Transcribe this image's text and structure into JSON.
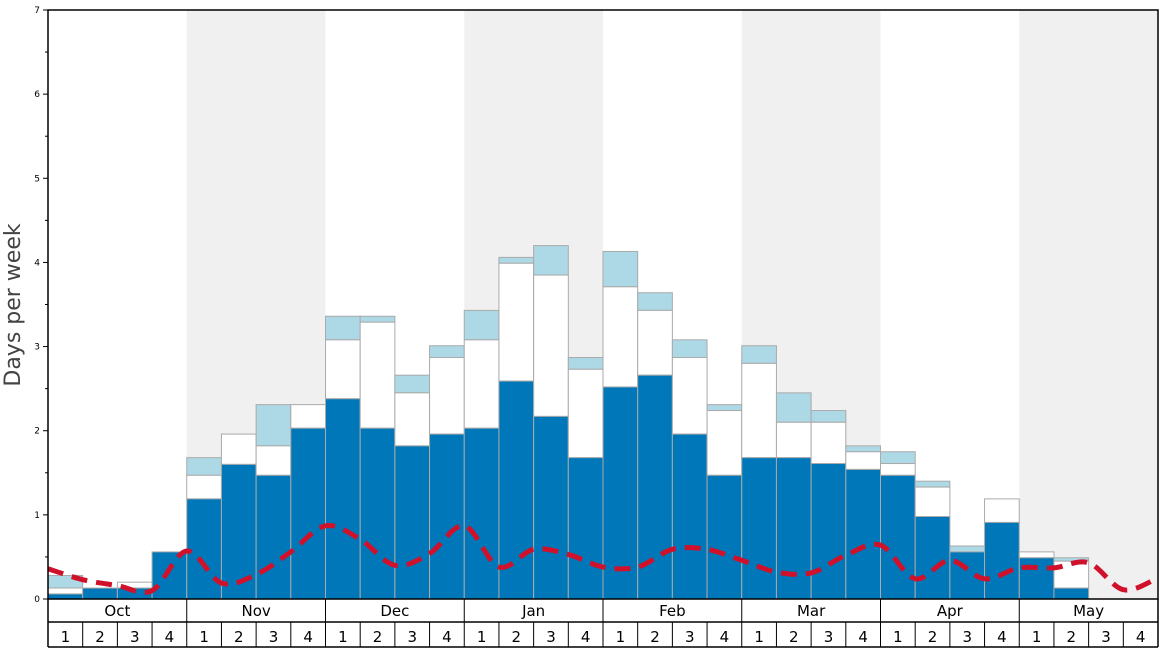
{
  "chart_data": {
    "type": "bar",
    "ylabel": "Days per week",
    "ylim": [
      0,
      7
    ],
    "yticks": [
      "0",
      "1",
      "2",
      "3",
      "4",
      "5",
      "6",
      "7"
    ],
    "months": [
      "Oct",
      "Nov",
      "Dec",
      "Jan",
      "Feb",
      "Mar",
      "Apr",
      "May"
    ],
    "weeks": [
      "1",
      "2",
      "3",
      "4"
    ],
    "colors": {
      "dark": "#0077b8",
      "mid": "#ffffff",
      "light": "#add8e6",
      "line": "#d0112b",
      "shade": "#f0f0f0",
      "bar_edge": "#aaaaaa"
    },
    "series": [
      {
        "values_dark": [
          0.06,
          0.13,
          0.13,
          0.56,
          1.19,
          1.6,
          1.47,
          2.03,
          2.38,
          2.03,
          1.82,
          1.96,
          2.03,
          2.59,
          2.17,
          1.68,
          2.52,
          2.66,
          1.96,
          1.47,
          1.68,
          1.68,
          1.61,
          1.54,
          1.47,
          0.98,
          0.56,
          0.91,
          0.49,
          0.13,
          0.0,
          0.0
        ],
        "values_mid_top": [
          0.13,
          0.13,
          0.2,
          0.56,
          1.47,
          1.96,
          1.82,
          2.31,
          3.08,
          3.29,
          2.45,
          2.87,
          3.08,
          3.99,
          3.85,
          2.73,
          3.71,
          3.43,
          2.87,
          2.24,
          2.8,
          2.1,
          2.1,
          1.75,
          1.61,
          1.33,
          0.56,
          1.19,
          0.56,
          0.45,
          0.0,
          0.0
        ],
        "values_total": [
          0.28,
          0.13,
          0.2,
          0.56,
          1.68,
          1.96,
          2.31,
          2.31,
          3.36,
          3.36,
          2.66,
          3.01,
          3.43,
          4.06,
          4.2,
          2.87,
          4.13,
          3.64,
          3.08,
          2.31,
          3.01,
          2.45,
          2.24,
          1.82,
          1.75,
          1.4,
          0.63,
          1.19,
          0.56,
          0.49,
          0.0,
          0.0
        ]
      }
    ],
    "line_values": [
      0.36,
      0.23,
      0.16,
      0.1,
      0.57,
      0.19,
      0.29,
      0.56,
      0.87,
      0.71,
      0.4,
      0.54,
      0.87,
      0.38,
      0.59,
      0.53,
      0.38,
      0.38,
      0.59,
      0.59,
      0.46,
      0.32,
      0.31,
      0.52,
      0.64,
      0.24,
      0.46,
      0.24,
      0.37,
      0.37,
      0.43,
      0.11,
      0.25
    ]
  }
}
